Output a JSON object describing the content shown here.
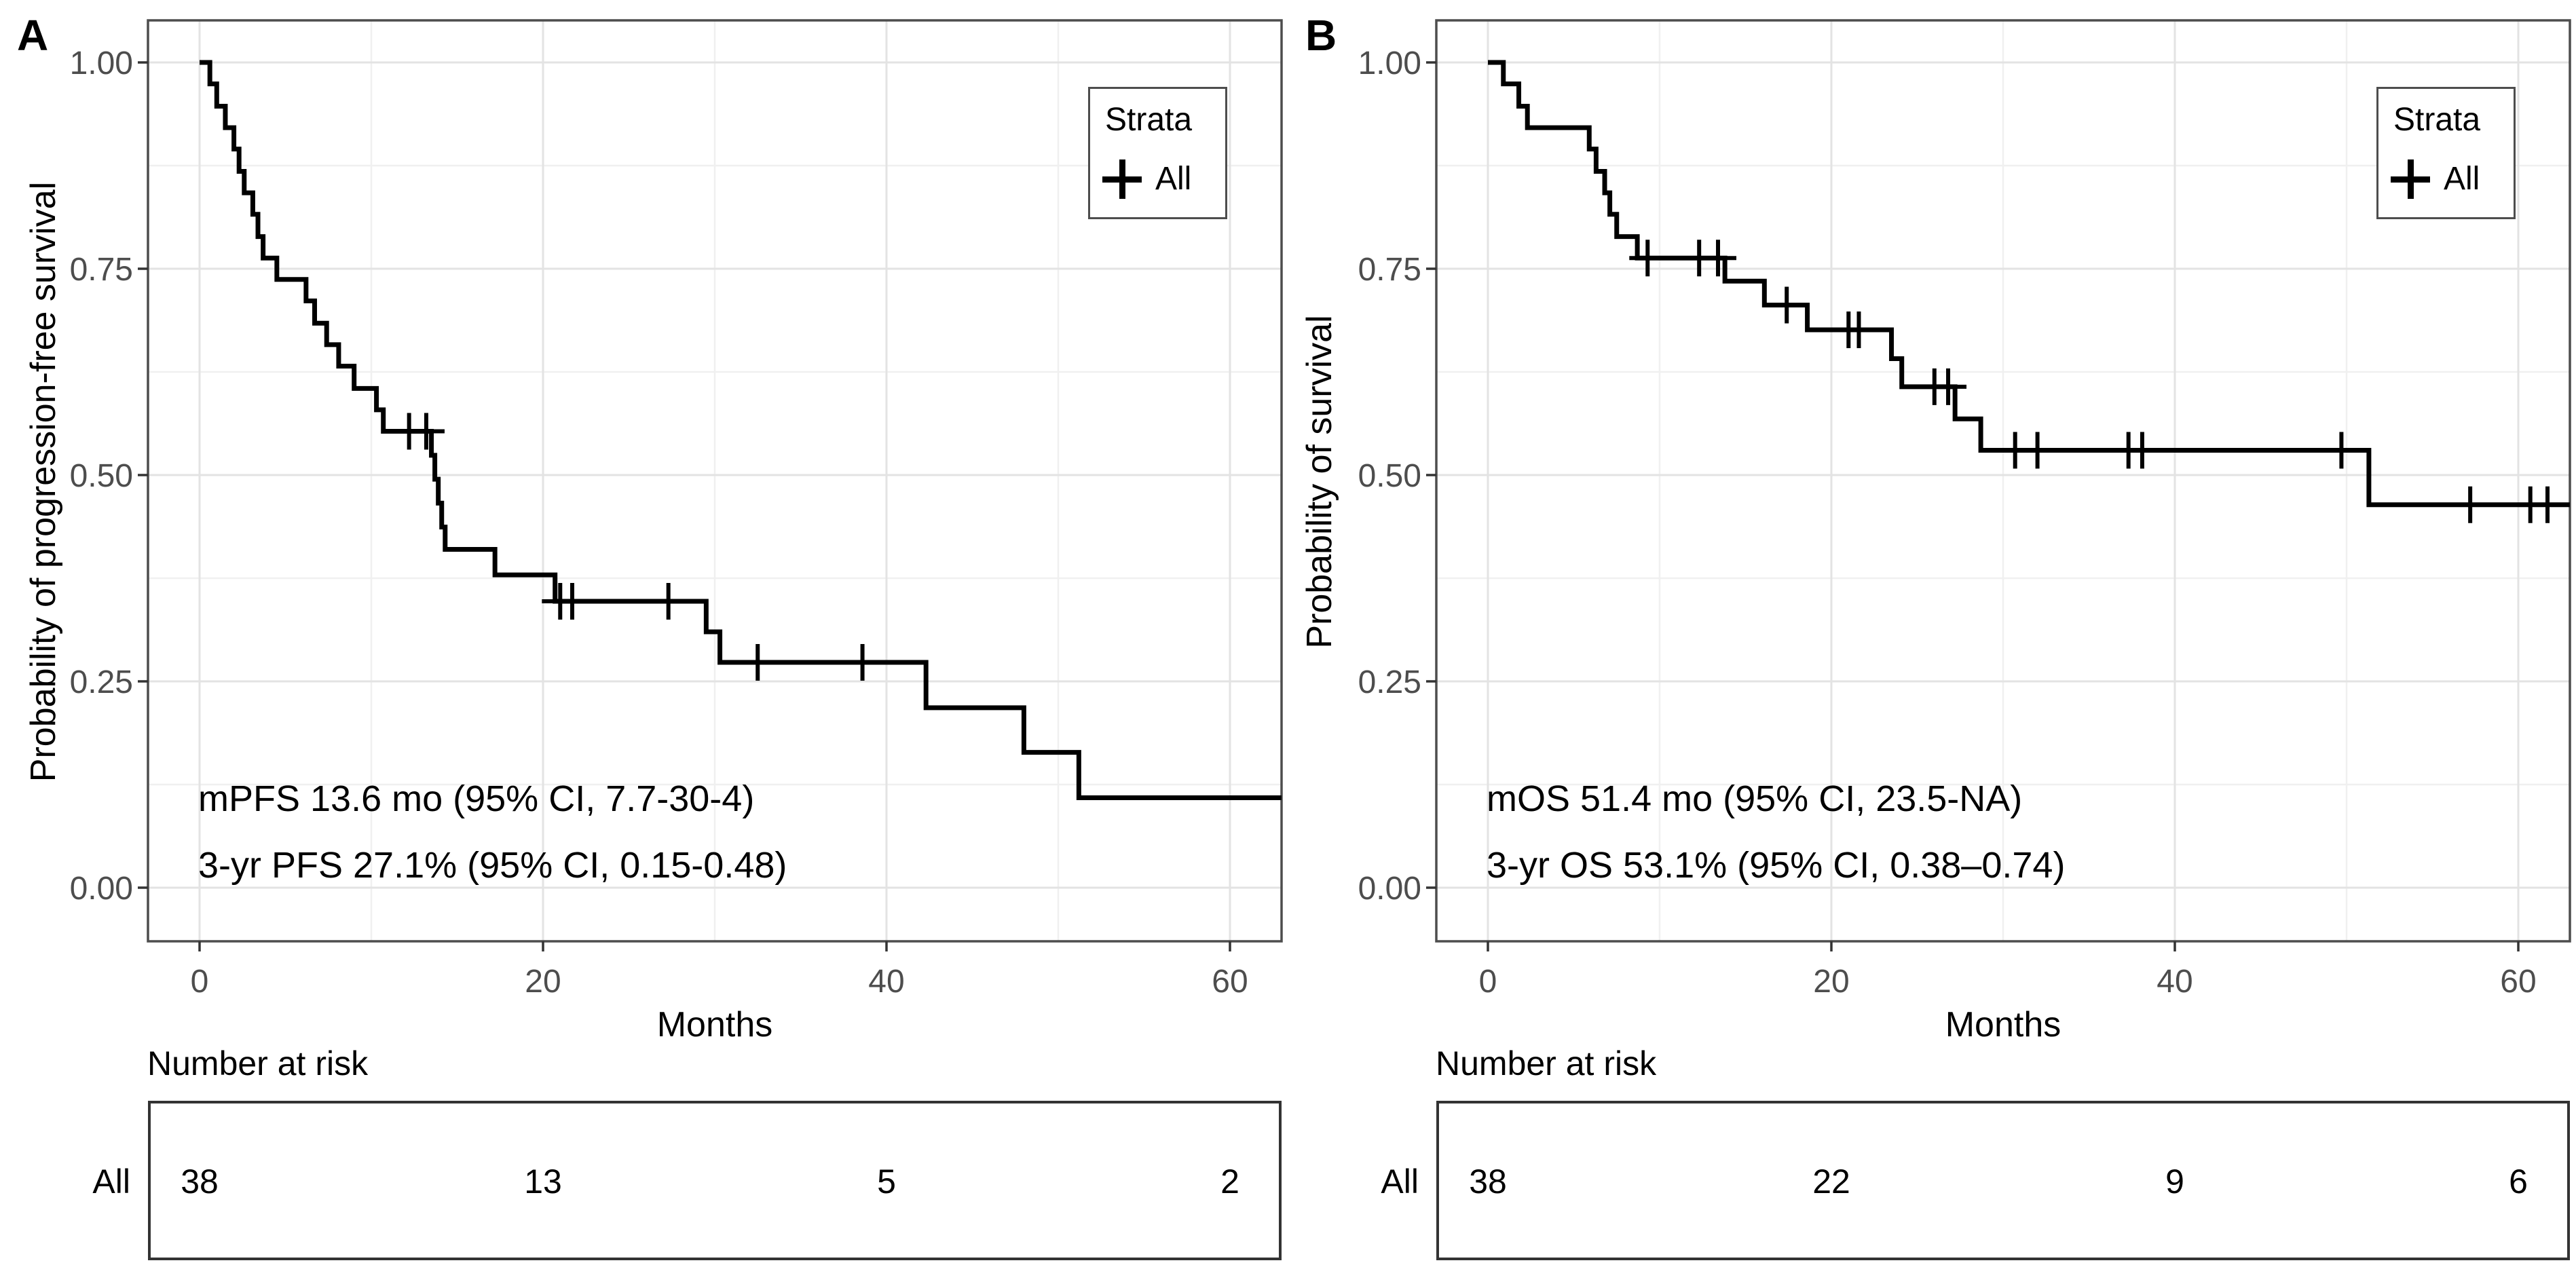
{
  "figure": {
    "background": "#ffffff",
    "curve_color": "#000000",
    "axis_text_color": "#4d4d4d",
    "panel_border_color": "#4d4d4d",
    "panels": [
      {
        "label": "A",
        "y_axis_title": "Probability of progression-free survival",
        "x_axis_title": "Months",
        "legend": {
          "title": "Strata",
          "item_label": "All",
          "marker": "plus-icon"
        },
        "annotations": {
          "line1": "mPFS 13.6 mo (95% CI, 7.7-30-4)",
          "line2": "3-yr PFS 27.1% (95% CI, 0.15-0.48)"
        },
        "risk_table": {
          "title": "Number at risk",
          "row_label": "All",
          "times": [
            0,
            20,
            40,
            60
          ],
          "values": [
            "38",
            "13",
            "5",
            "2"
          ]
        }
      },
      {
        "label": "B",
        "y_axis_title": "Probability of survival",
        "x_axis_title": "Months",
        "legend": {
          "title": "Strata",
          "item_label": "All",
          "marker": "plus-icon"
        },
        "annotations": {
          "line1": "mOS 51.4 mo (95% CI, 23.5-NA)",
          "line2": "3-yr OS 53.1% (95% CI, 0.38–0.74)"
        },
        "risk_table": {
          "title": "Number at risk",
          "row_label": "All",
          "times": [
            0,
            20,
            40,
            60
          ],
          "values": [
            "38",
            "22",
            "9",
            "6"
          ]
        }
      }
    ]
  },
  "chart_data": [
    {
      "type": "line",
      "subtype": "kaplan_meier_step",
      "title": "",
      "xlabel": "Months",
      "ylabel": "Probability of progression-free survival",
      "xlim": [
        -3,
        63
      ],
      "ylim": [
        0,
        1
      ],
      "xticks": [
        0,
        20,
        40,
        60
      ],
      "xtick_labels": [
        "0",
        "20",
        "40",
        "60"
      ],
      "yticks": [
        0.0,
        0.25,
        0.5,
        0.75,
        1.0
      ],
      "ytick_labels": [
        "0.00",
        "0.25",
        "0.50",
        "0.75",
        "1.00"
      ],
      "minor_xticks": [
        10,
        30,
        50
      ],
      "minor_yticks": [
        0.125,
        0.375,
        0.625,
        0.875
      ],
      "grid": true,
      "legend_position": "top-right",
      "annotations": [
        "mPFS 13.6 mo (95% CI, 7.7-30-4)",
        "3-yr PFS 27.1% (95% CI, 0.15-0.48)"
      ],
      "series": [
        {
          "name": "All",
          "color": "#000000",
          "steps": [
            [
              0.0,
              1.0
            ],
            [
              0.6,
              0.974
            ],
            [
              1.0,
              0.947
            ],
            [
              1.5,
              0.921
            ],
            [
              2.0,
              0.895
            ],
            [
              2.3,
              0.868
            ],
            [
              2.6,
              0.842
            ],
            [
              3.1,
              0.816
            ],
            [
              3.4,
              0.789
            ],
            [
              3.7,
              0.763
            ],
            [
              4.5,
              0.737
            ],
            [
              6.2,
              0.711
            ],
            [
              6.7,
              0.684
            ],
            [
              7.4,
              0.658
            ],
            [
              8.1,
              0.632
            ],
            [
              9.0,
              0.605
            ],
            [
              10.3,
              0.579
            ],
            [
              10.7,
              0.553
            ],
            [
              13.5,
              0.524
            ],
            [
              13.7,
              0.495
            ],
            [
              13.9,
              0.466
            ],
            [
              14.1,
              0.437
            ],
            [
              14.3,
              0.41
            ],
            [
              17.2,
              0.379
            ],
            [
              20.7,
              0.347
            ],
            [
              29.5,
              0.31
            ],
            [
              30.3,
              0.273
            ],
            [
              42.3,
              0.218
            ],
            [
              48.0,
              0.164
            ],
            [
              51.2,
              0.109
            ],
            [
              63.0,
              0.109
            ]
          ],
          "censors": [
            [
              12.2,
              0.553
            ],
            [
              13.2,
              0.553
            ],
            [
              21.0,
              0.347
            ],
            [
              21.7,
              0.347
            ],
            [
              27.3,
              0.347
            ],
            [
              32.5,
              0.273
            ],
            [
              38.6,
              0.273
            ]
          ]
        }
      ],
      "number_at_risk": {
        "row_label": "All",
        "times": [
          0,
          20,
          40,
          60
        ],
        "values": [
          38,
          13,
          5,
          2
        ]
      }
    },
    {
      "type": "line",
      "subtype": "kaplan_meier_step",
      "title": "",
      "xlabel": "Months",
      "ylabel": "Probability of survival",
      "xlim": [
        -3,
        63
      ],
      "ylim": [
        0,
        1
      ],
      "xticks": [
        0,
        20,
        40,
        60
      ],
      "xtick_labels": [
        "0",
        "20",
        "40",
        "60"
      ],
      "yticks": [
        0.0,
        0.25,
        0.5,
        0.75,
        1.0
      ],
      "ytick_labels": [
        "0.00",
        "0.25",
        "0.50",
        "0.75",
        "1.00"
      ],
      "minor_xticks": [
        10,
        30,
        50
      ],
      "minor_yticks": [
        0.125,
        0.375,
        0.625,
        0.875
      ],
      "grid": true,
      "legend_position": "top-right",
      "annotations": [
        "mOS 51.4 mo (95% CI, 23.5-NA)",
        "3-yr OS 53.1% (95% CI, 0.38–0.74)"
      ],
      "series": [
        {
          "name": "All",
          "color": "#000000",
          "steps": [
            [
              0.0,
              1.0
            ],
            [
              0.9,
              0.974
            ],
            [
              1.8,
              0.947
            ],
            [
              2.3,
              0.921
            ],
            [
              5.9,
              0.895
            ],
            [
              6.3,
              0.868
            ],
            [
              6.8,
              0.842
            ],
            [
              7.1,
              0.816
            ],
            [
              7.5,
              0.789
            ],
            [
              8.7,
              0.763
            ],
            [
              13.8,
              0.735
            ],
            [
              16.1,
              0.706
            ],
            [
              18.6,
              0.676
            ],
            [
              23.5,
              0.641
            ],
            [
              24.1,
              0.607
            ],
            [
              27.2,
              0.568
            ],
            [
              28.7,
              0.53
            ],
            [
              51.3,
              0.464
            ],
            [
              63.0,
              0.464
            ]
          ],
          "censors": [
            [
              9.3,
              0.763
            ],
            [
              12.3,
              0.763
            ],
            [
              13.4,
              0.763
            ],
            [
              17.4,
              0.706
            ],
            [
              21.0,
              0.676
            ],
            [
              21.6,
              0.676
            ],
            [
              26.0,
              0.607
            ],
            [
              26.8,
              0.607
            ],
            [
              30.7,
              0.53
            ],
            [
              32.0,
              0.53
            ],
            [
              37.3,
              0.53
            ],
            [
              38.1,
              0.53
            ],
            [
              49.7,
              0.53
            ],
            [
              57.2,
              0.464
            ],
            [
              60.7,
              0.464
            ],
            [
              61.7,
              0.464
            ]
          ]
        }
      ],
      "number_at_risk": {
        "row_label": "All",
        "times": [
          0,
          20,
          40,
          60
        ],
        "values": [
          38,
          22,
          9,
          6
        ]
      }
    }
  ]
}
